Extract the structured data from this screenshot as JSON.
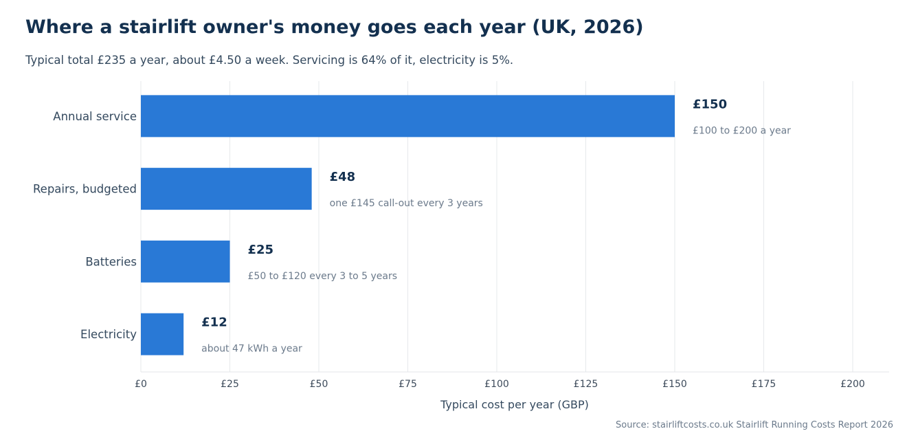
{
  "chart_data": {
    "type": "bar",
    "orientation": "horizontal",
    "title": "Where a stairlift owner's money goes each year (UK, 2026)",
    "subtitle": "Typical total £235 a year, about £4.50 a week. Servicing is 64% of it, electricity is 5%.",
    "categories": [
      "Annual service",
      "Repairs, budgeted",
      "Batteries",
      "Electricity"
    ],
    "values": [
      150,
      48,
      25,
      12
    ],
    "value_labels": [
      "£150",
      "£48",
      "£25",
      "£12"
    ],
    "notes": [
      "£100 to £200 a year",
      "one £145 call-out every 3 years",
      "£50 to £120 every 3 to 5 years",
      "about 47 kWh a year"
    ],
    "xlabel": "Typical cost per year (GBP)",
    "xlim": [
      0,
      210
    ],
    "xticks": [
      0,
      25,
      50,
      75,
      100,
      125,
      150,
      175,
      200
    ],
    "xtick_labels": [
      "£0",
      "£25",
      "£50",
      "£75",
      "£100",
      "£125",
      "£150",
      "£175",
      "£200"
    ],
    "grid": "vertical",
    "bar_color": "#2979d6",
    "source": "Source: stairliftcosts.co.uk Stairlift Running Costs Report 2026"
  }
}
